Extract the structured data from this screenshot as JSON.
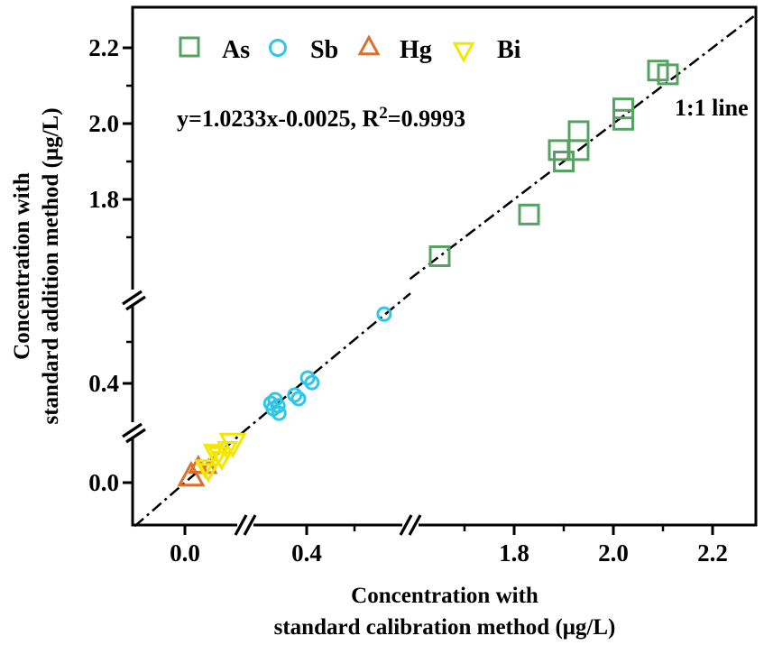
{
  "chart_data": {
    "type": "scatter",
    "title": "",
    "xlabel_line1": "Concentration with",
    "xlabel_line2": "standard calibration method (μg/L)",
    "ylabel_line1": "Concentration with",
    "ylabel_line2": "standard addition method (μg/L)",
    "equation": "y=1.0233x-0.0025, R²=0.9993",
    "equation_prefix": "y=1.0233x-0.0025, R",
    "equation_sup": "2",
    "equation_suffix": "=0.9993",
    "one_to_one_line": {
      "label": "1:1 line",
      "style": "dash-dot",
      "color": "#000000"
    },
    "grid": false,
    "legend_position": "top",
    "x_segments_shown": [
      [
        -0.1,
        0.15
      ],
      [
        0.27,
        0.62
      ],
      [
        1.59,
        2.29
      ]
    ],
    "y_segments_shown": [
      [
        -0.1,
        0.15
      ],
      [
        0.28,
        0.62
      ],
      [
        1.54,
        2.3
      ]
    ],
    "x_major_ticks": [
      {
        "value": 0.0,
        "label": "0.0"
      },
      {
        "value": 0.4,
        "label": "0.4"
      },
      {
        "value": 1.8,
        "label": "1.8"
      },
      {
        "value": 2.0,
        "label": "2.0"
      },
      {
        "value": 2.2,
        "label": "2.2"
      }
    ],
    "x_minor_ticks": [
      0.5,
      1.7,
      1.9,
      2.1
    ],
    "y_major_ticks": [
      {
        "value": 0.0,
        "label": "0.0"
      },
      {
        "value": 0.4,
        "label": "0.4"
      },
      {
        "value": 1.8,
        "label": "1.8"
      },
      {
        "value": 2.0,
        "label": "2.0"
      },
      {
        "value": 2.2,
        "label": "2.2"
      }
    ],
    "y_minor_ticks": [
      0.5,
      1.7,
      1.9,
      2.1
    ],
    "series": [
      {
        "name": "As",
        "marker": "square",
        "color": "#56a262",
        "size": 21,
        "points": [
          [
            1.65,
            1.65
          ],
          [
            1.83,
            1.76
          ],
          [
            1.89,
            1.93
          ],
          [
            1.9,
            1.9
          ],
          [
            1.93,
            1.98
          ],
          [
            1.93,
            1.93
          ],
          [
            2.02,
            2.01
          ],
          [
            2.02,
            2.04
          ],
          [
            2.09,
            2.14
          ],
          [
            2.11,
            2.13
          ]
        ]
      },
      {
        "name": "Sb",
        "marker": "circle",
        "color": "#2ec6e9",
        "size": 17,
        "points": [
          [
            0.325,
            0.352
          ],
          [
            0.334,
            0.361
          ],
          [
            0.33,
            0.339
          ],
          [
            0.34,
            0.346
          ],
          [
            0.342,
            0.328
          ],
          [
            0.375,
            0.372
          ],
          [
            0.383,
            0.363
          ],
          [
            0.402,
            0.413
          ],
          [
            0.411,
            0.402
          ],
          [
            0.562,
            0.567
          ]
        ]
      },
      {
        "name": "Hg",
        "marker": "triangle-up",
        "color": "#d9702e",
        "size": 18,
        "points": [
          [
            0.013,
            0.013,
            26
          ],
          [
            0.028,
            0.038,
            18
          ],
          [
            0.05,
            0.035,
            15
          ]
        ]
      },
      {
        "name": "Bi",
        "marker": "triangle-down",
        "color": "#f3e600",
        "size": 19,
        "points": [
          [
            0.042,
            0.039
          ],
          [
            0.049,
            0.03
          ],
          [
            0.06,
            0.076
          ],
          [
            0.07,
            0.07
          ],
          [
            0.077,
            0.059
          ],
          [
            0.089,
            0.083
          ],
          [
            0.1,
            0.098,
            26
          ]
        ]
      }
    ]
  }
}
